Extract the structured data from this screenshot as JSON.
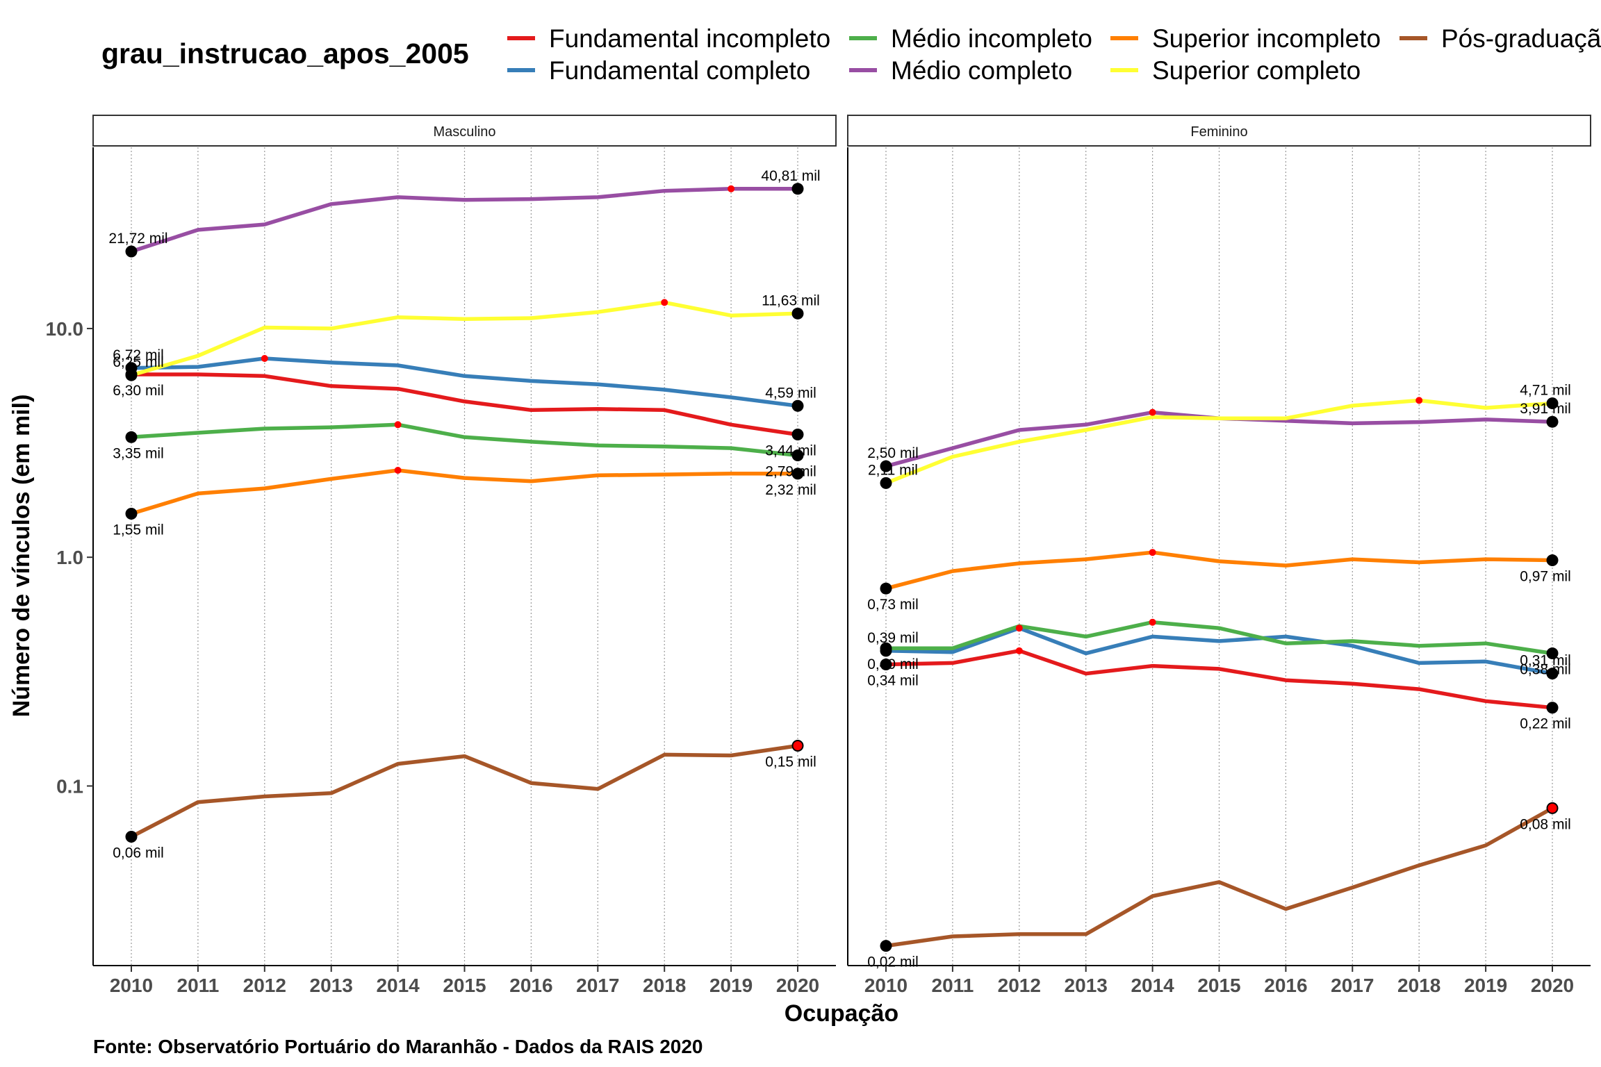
{
  "chart_data": {
    "type": "line",
    "title": "",
    "legend_title": "grau_instrucao_apos_2005",
    "legend_position": "top",
    "xlabel": "Ocupação",
    "ylabel": "Número de vínculos (em mil)",
    "caption": "Fonte: Observatório Portuário do Maranhão - Dados da RAIS 2020",
    "y_scale": "log10",
    "y_ticks": [
      {
        "value": 0.1,
        "label": "0.1"
      },
      {
        "value": 1,
        "label": "1.0"
      },
      {
        "value": 10,
        "label": "10.0"
      }
    ],
    "x": [
      2010,
      2011,
      2012,
      2013,
      2014,
      2015,
      2016,
      2017,
      2018,
      2019,
      2020
    ],
    "x_tick_labels": [
      "2010",
      "2011",
      "2012",
      "2013",
      "2014",
      "2015",
      "2016",
      "2017",
      "2018",
      "2019",
      "2020"
    ],
    "series_styles": [
      {
        "name": "Fundamental incompleto",
        "color": "#e41a1c"
      },
      {
        "name": "Fundamental completo",
        "color": "#377eb8"
      },
      {
        "name": "Médio incompleto",
        "color": "#4daf4a"
      },
      {
        "name": "Médio completo",
        "color": "#984ea3"
      },
      {
        "name": "Superior incompleto",
        "color": "#ff7f00"
      },
      {
        "name": "Superior completo",
        "color": "#ffff33"
      },
      {
        "name": "Pós-graduação",
        "color": "#a65628"
      }
    ],
    "legend_display": [
      "Fundamental incompleto",
      "Fundamental completo",
      "Médio incompleto",
      "Médio completo",
      "Superior incompleto",
      "Superior completo",
      "Pós-graduaçã"
    ],
    "panels": [
      {
        "name": "Masculino",
        "series": [
          {
            "name": "Fundamental incompleto",
            "values": [
              6.3,
              6.3,
              6.2,
              5.6,
              5.45,
              4.8,
              4.4,
              4.45,
              4.4,
              3.8,
              3.44
            ],
            "peak_year": 2010,
            "labels": [
              {
                "x": 2010,
                "text": "6,30 mil"
              },
              {
                "x": 2020,
                "text": "3,44 mil"
              }
            ]
          },
          {
            "name": "Fundamental completo",
            "values": [
              6.72,
              6.8,
              7.4,
              7.1,
              6.9,
              6.2,
              5.9,
              5.7,
              5.4,
              5.0,
              4.59
            ],
            "peak_year": 2012,
            "labels": [
              {
                "x": 2010,
                "text": "6,72 mil"
              },
              {
                "x": 2020,
                "text": "4,59 mil"
              }
            ]
          },
          {
            "name": "Médio incompleto",
            "values": [
              3.35,
              3.5,
              3.65,
              3.7,
              3.8,
              3.35,
              3.2,
              3.08,
              3.05,
              3.0,
              2.79
            ],
            "peak_year": 2014,
            "labels": [
              {
                "x": 2010,
                "text": "3,35 mil"
              },
              {
                "x": 2020,
                "text": "2,79 mil"
              }
            ]
          },
          {
            "name": "Médio completo",
            "values": [
              21.72,
              27.0,
              28.5,
              35.0,
              37.5,
              36.5,
              36.8,
              37.5,
              40.0,
              40.81,
              40.81
            ],
            "peak_year": 2019,
            "labels": [
              {
                "x": 2010,
                "text": "21,72 mil"
              },
              {
                "x": 2020,
                "text": "40,81 mil"
              }
            ]
          },
          {
            "name": "Superior incompleto",
            "values": [
              1.55,
              1.9,
              2.0,
              2.2,
              2.4,
              2.22,
              2.15,
              2.28,
              2.3,
              2.32,
              2.32
            ],
            "peak_year": 2014,
            "labels": [
              {
                "x": 2010,
                "text": "1,55 mil"
              },
              {
                "x": 2020,
                "text": "2,32 mil"
              }
            ]
          },
          {
            "name": "Superior completo",
            "values": [
              6.25,
              7.6,
              10.1,
              10.0,
              11.2,
              11.0,
              11.1,
              11.8,
              13.0,
              11.4,
              11.63
            ],
            "peak_year": 2018,
            "labels": [
              {
                "x": 2010,
                "text": "6,25 mil"
              },
              {
                "x": 2020,
                "text": "11,63 mil"
              }
            ]
          },
          {
            "name": "Pós-graduação",
            "values": [
              0.06,
              0.085,
              0.09,
              0.093,
              0.125,
              0.135,
              0.103,
              0.097,
              0.137,
              0.136,
              0.15
            ],
            "peak_year": 2020,
            "labels": [
              {
                "x": 2010,
                "text": "0,06 mil"
              },
              {
                "x": 2020,
                "text": "0,15 mil"
              }
            ]
          }
        ]
      },
      {
        "name": "Feminino",
        "series": [
          {
            "name": "Fundamental incompleto",
            "values": [
              0.34,
              0.345,
              0.39,
              0.31,
              0.335,
              0.325,
              0.29,
              0.28,
              0.265,
              0.235,
              0.22
            ],
            "peak_year": 2012,
            "labels": [
              {
                "x": 2010,
                "text": "0,34 mil"
              },
              {
                "x": 2020,
                "text": "0,22 mil"
              }
            ]
          },
          {
            "name": "Fundamental completo",
            "values": [
              0.39,
              0.385,
              0.49,
              0.38,
              0.45,
              0.43,
              0.45,
              0.41,
              0.345,
              0.35,
              0.31
            ],
            "peak_year": 2012,
            "labels": [
              {
                "x": 2010,
                "text": "0,39 mil"
              },
              {
                "x": 2020,
                "text": "0,31 mil"
              }
            ]
          },
          {
            "name": "Médio incompleto",
            "values": [
              0.4,
              0.4,
              0.5,
              0.45,
              0.52,
              0.49,
              0.42,
              0.43,
              0.41,
              0.42,
              0.38
            ],
            "peak_year": 2014,
            "labels": [
              {
                "x": 2010,
                "text": "0,40 mil"
              },
              {
                "x": 2020,
                "text": "0,38 mil"
              }
            ]
          },
          {
            "name": "Médio completo",
            "values": [
              2.5,
              3.0,
              3.6,
              3.8,
              4.3,
              4.05,
              3.95,
              3.85,
              3.9,
              4.0,
              3.91
            ],
            "peak_year": 2014,
            "labels": [
              {
                "x": 2010,
                "text": "2,50 mil"
              },
              {
                "x": 2020,
                "text": "3,91 mil"
              }
            ]
          },
          {
            "name": "Superior incompleto",
            "values": [
              0.73,
              0.87,
              0.94,
              0.98,
              1.05,
              0.96,
              0.92,
              0.98,
              0.95,
              0.98,
              0.97
            ],
            "peak_year": 2014,
            "labels": [
              {
                "x": 2010,
                "text": "0,73 mil"
              },
              {
                "x": 2020,
                "text": "0,97 mil"
              }
            ]
          },
          {
            "name": "Superior completo",
            "values": [
              2.11,
              2.75,
              3.2,
              3.6,
              4.1,
              4.05,
              4.05,
              4.6,
              4.85,
              4.5,
              4.71
            ],
            "peak_year": 2018,
            "labels": [
              {
                "x": 2010,
                "text": "2,11 mil"
              },
              {
                "x": 2020,
                "text": "4,71 mil"
              }
            ]
          },
          {
            "name": "Pós-graduação",
            "values": [
              0.02,
              0.022,
              0.0225,
              0.0225,
              0.033,
              0.038,
              0.029,
              0.036,
              0.045,
              0.055,
              0.08
            ],
            "peak_year": 2020,
            "labels": [
              {
                "x": 2010,
                "text": "0,02 mil"
              },
              {
                "x": 2020,
                "text": "0,08 mil"
              }
            ]
          }
        ]
      }
    ]
  }
}
